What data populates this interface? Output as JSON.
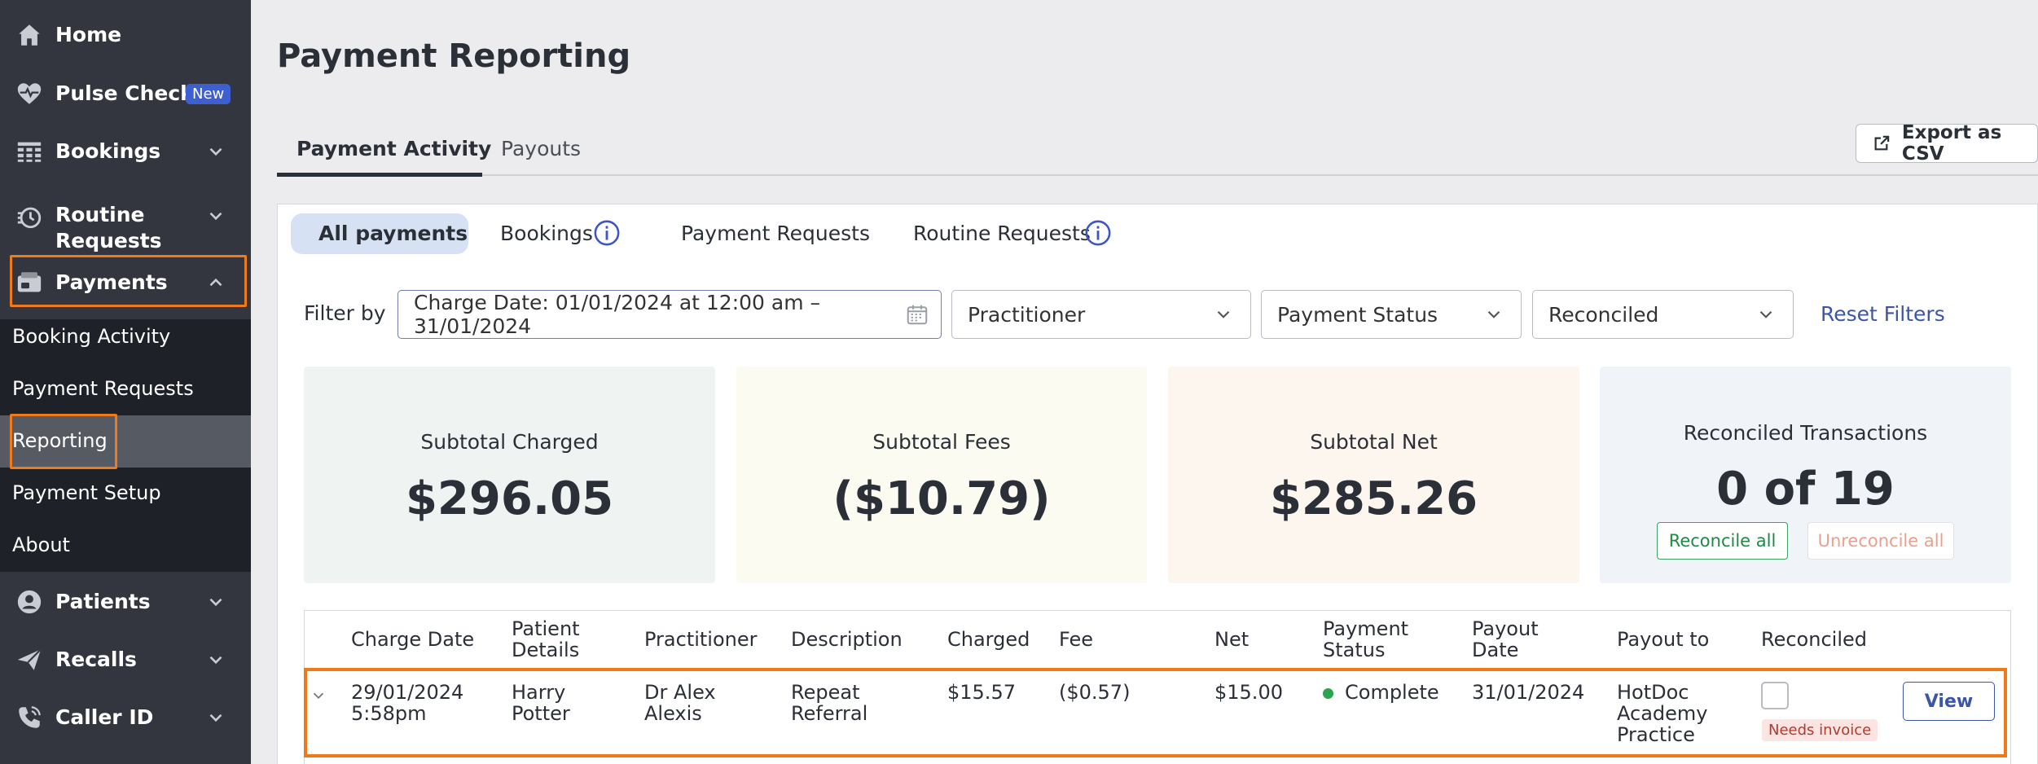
{
  "sidebar": {
    "home": "Home",
    "pulse_check": "Pulse Check",
    "pulse_badge": "New",
    "bookings": "Bookings",
    "routine_requests_line1": "Routine",
    "routine_requests_line2": "Requests",
    "payments": "Payments",
    "sub_items": [
      "Booking Activity",
      "Payment Requests",
      "Reporting",
      "Payment Setup",
      "About"
    ],
    "patients": "Patients",
    "recalls": "Recalls",
    "caller_id": "Caller ID"
  },
  "page_title": "Payment Reporting",
  "tabs": [
    "Payment Activity",
    "Payouts"
  ],
  "export_label": "Export as CSV",
  "subtabs": [
    "All payments",
    "Bookings",
    "Payment Requests",
    "Routine Requests"
  ],
  "filters": {
    "label": "Filter by",
    "charge_date": "Charge Date: 01/01/2024 at 12:00 am – 31/01/2024",
    "practitioner": "Practitioner",
    "payment_status": "Payment Status",
    "reconciled": "Reconciled",
    "reset": "Reset Filters"
  },
  "summary": {
    "charged_label": "Subtotal Charged",
    "charged_value": "$296.05",
    "fees_label": "Subtotal Fees",
    "fees_value": "($10.79)",
    "net_label": "Subtotal Net",
    "net_value": "$285.26",
    "reconciled_label": "Reconciled Transactions",
    "reconciled_value": "0 of 19",
    "reconcile_all": "Reconcile all",
    "unreconcile_all": "Unreconcile all"
  },
  "table": {
    "headers": {
      "charge_date": "Charge Date",
      "patient_l1": "Patient",
      "patient_l2": "Details",
      "practitioner": "Practitioner",
      "description": "Description",
      "charged": "Charged",
      "fee": "Fee",
      "net": "Net",
      "status_l1": "Payment",
      "status_l2": "Status",
      "payout_l1": "Payout",
      "payout_l2": "Date",
      "payout_to": "Payout to",
      "reconciled": "Reconciled"
    },
    "row": {
      "date": "29/01/2024",
      "time": "5:58pm",
      "patient_l1": "Harry",
      "patient_l2": "Potter",
      "practitioner_l1": "Dr Alex",
      "practitioner_l2": "Alexis",
      "description_l1": "Repeat",
      "description_l2": "Referral",
      "charged": "$15.57",
      "fee": "($0.57)",
      "net": "$15.00",
      "status": "Complete",
      "payout_date": "31/01/2024",
      "payout_to_l1": "HotDoc",
      "payout_to_l2": "Academy",
      "payout_to_l3": "Practice",
      "needs_invoice": "Needs invoice",
      "view": "View"
    }
  }
}
